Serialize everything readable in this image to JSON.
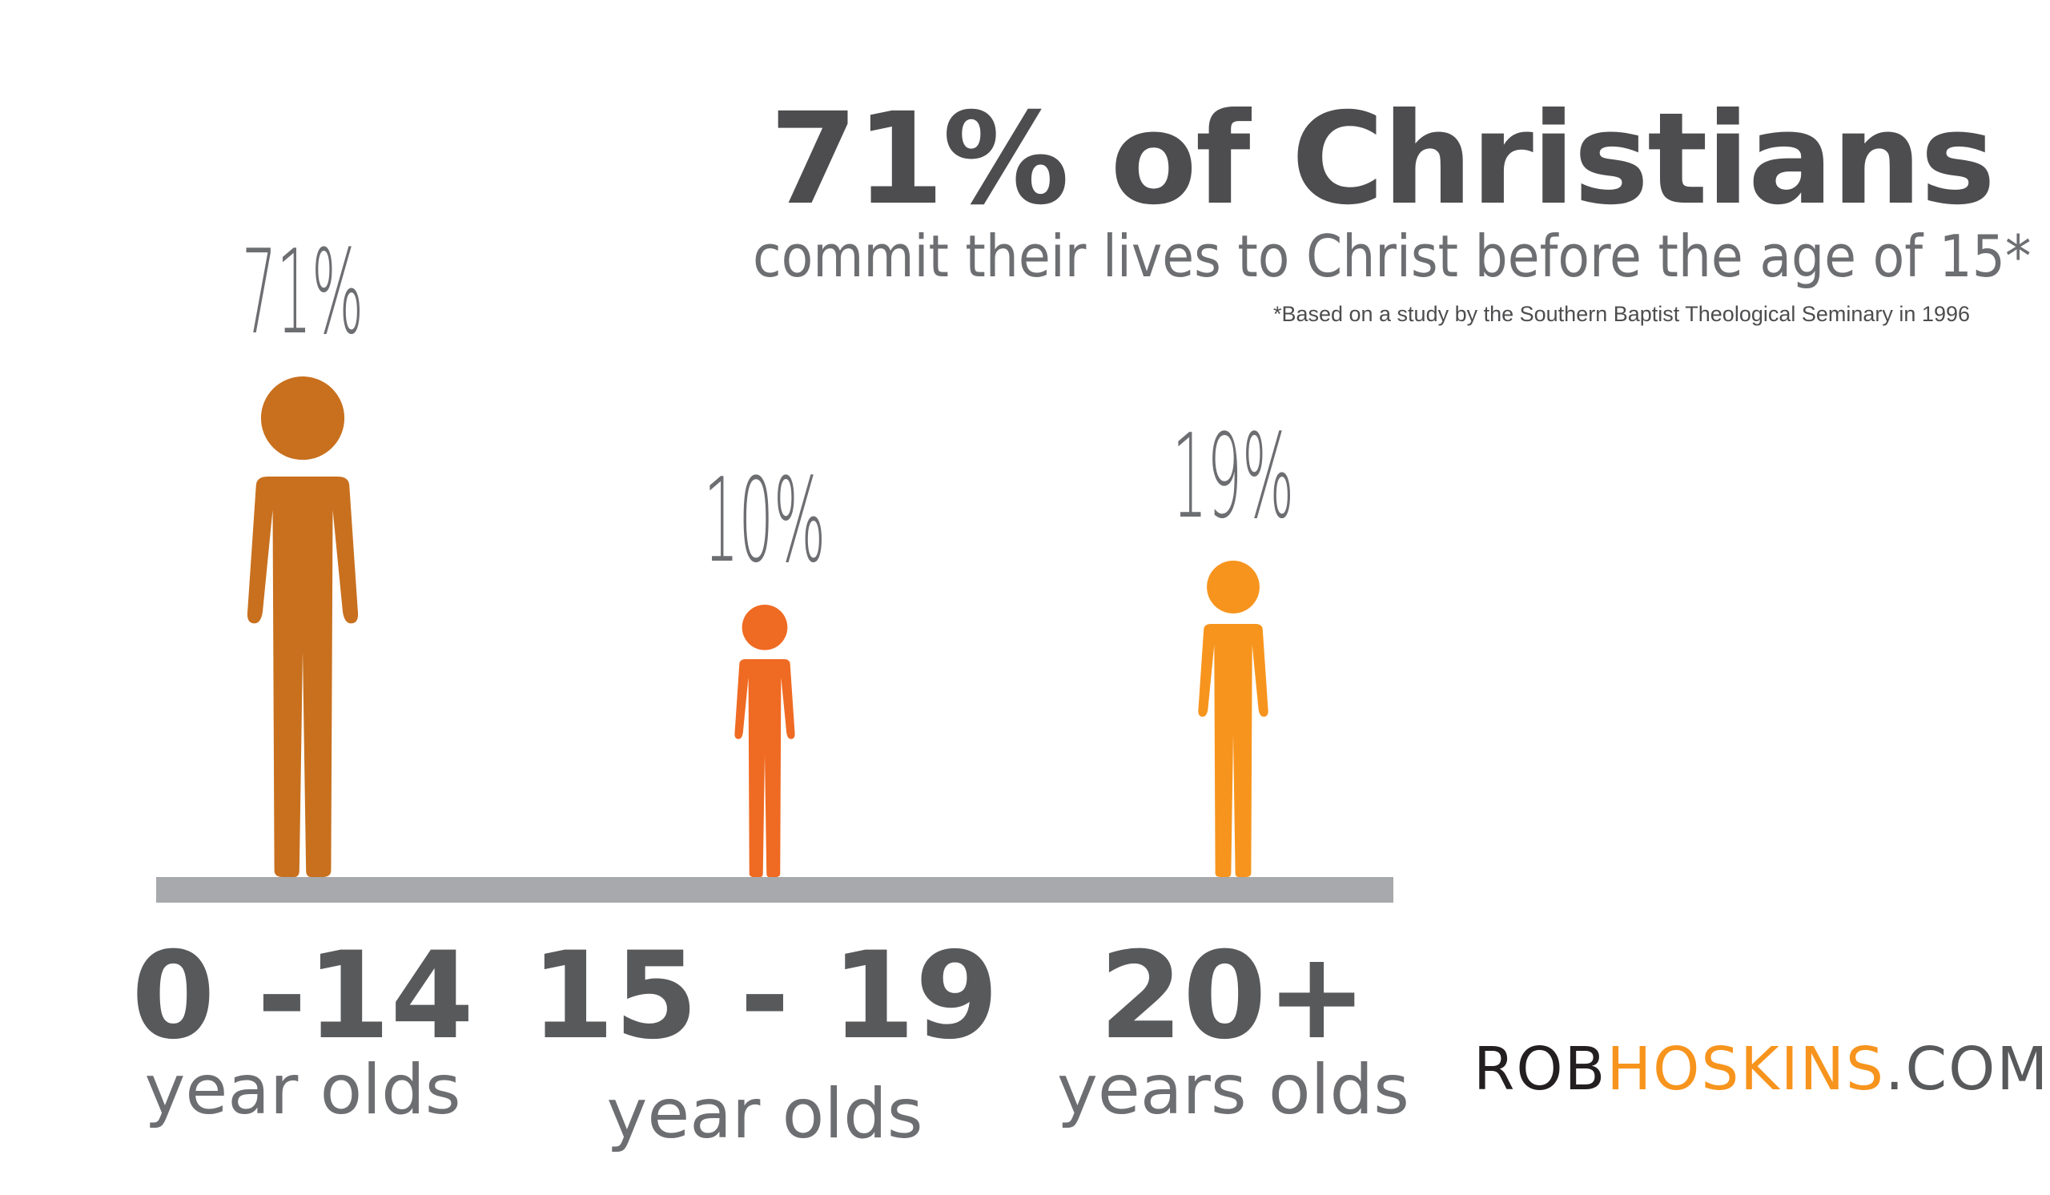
{
  "headline": "71% of Christians",
  "subheadline": "commit their lives to Christ before the age of 15*",
  "footnote": "*Based on a study by the Southern Baptist Theological Seminary in 1996",
  "brand": {
    "part1": "ROB",
    "part2": "HOSKINS",
    "part3": ".COM"
  },
  "chart_data": {
    "type": "bar",
    "mark": "person-pictogram",
    "categories": [
      {
        "range": "0 -14",
        "unit": "year olds"
      },
      {
        "range": "15 - 19",
        "unit": "year olds"
      },
      {
        "range": "20+",
        "unit": "years olds"
      }
    ],
    "values": [
      71,
      10,
      19
    ],
    "value_labels": [
      "71%",
      "10%",
      "19%"
    ],
    "colors": [
      "#c8701e",
      "#ef6a22",
      "#f7941d"
    ],
    "baseline_color": "#a7a9ac",
    "label_color": "#6d6e71",
    "range_color": "#58595b"
  }
}
